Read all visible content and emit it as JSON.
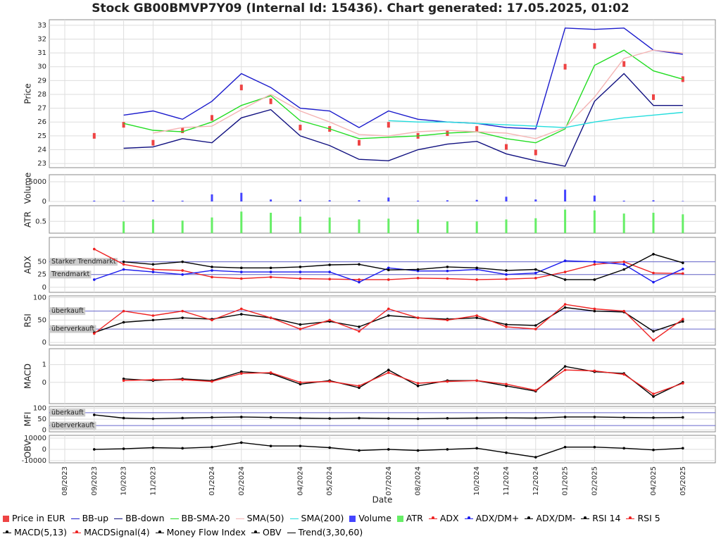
{
  "chart_data": {
    "type": "stock",
    "title": "Stock GB00BMVP7Y09 (Internal Id: 15436). Chart generated: 17.05.2025, 01:02",
    "x_label": "Date",
    "categories": [
      "08/2023",
      "09/2023",
      "10/2023",
      "11/2023",
      null,
      "01/2024",
      "02/2024",
      null,
      "04/2024",
      "05/2024",
      null,
      "07/2024",
      "08/2024",
      null,
      "10/2024",
      "11/2024",
      "12/2024",
      "01/2025",
      "02/2025",
      null,
      "04/2025",
      "05/2025"
    ],
    "grid": true,
    "panels": [
      {
        "y_label": "Price",
        "ylim": [
          22.7,
          33.4
        ],
        "yticks": [
          23,
          24,
          25,
          26,
          27,
          28,
          29,
          30,
          31,
          32,
          33
        ],
        "series": [
          {
            "name": "Price in EUR",
            "type": "price",
            "color": "#ee4444",
            "values": [
              null,
              25.0,
              25.8,
              24.5,
              25.4,
              26.3,
              28.5,
              27.5,
              25.6,
              25.5,
              24.5,
              25.8,
              25.0,
              25.2,
              25.5,
              24.2,
              23.8,
              30.0,
              31.5,
              30.2,
              27.8,
              29.1
            ]
          },
          {
            "name": "BB-up",
            "type": "line",
            "color": "#1a1acc",
            "values": [
              null,
              null,
              26.5,
              26.8,
              26.2,
              27.5,
              29.5,
              28.5,
              27.0,
              26.8,
              25.6,
              26.8,
              26.2,
              26.0,
              25.9,
              25.6,
              25.5,
              32.8,
              32.7,
              32.8,
              31.2,
              30.9
            ]
          },
          {
            "name": "BB-down",
            "type": "line",
            "color": "#101080",
            "values": [
              null,
              null,
              24.1,
              24.2,
              24.8,
              24.5,
              26.3,
              26.9,
              25.0,
              24.3,
              23.3,
              23.2,
              24.0,
              24.4,
              24.6,
              23.7,
              23.2,
              22.8,
              27.5,
              29.5,
              27.2,
              27.2
            ]
          },
          {
            "name": "BB-SMA-20",
            "type": "line",
            "color": "#22dd22",
            "values": [
              null,
              null,
              25.9,
              25.4,
              25.3,
              26.0,
              27.2,
              27.9,
              26.1,
              25.5,
              24.8,
              24.9,
              25.0,
              25.2,
              25.3,
              24.8,
              24.5,
              25.5,
              30.1,
              31.2,
              29.7,
              29.1
            ]
          },
          {
            "name": "SMA(50)",
            "type": "line",
            "color": "#f4b4b4",
            "values": [
              null,
              null,
              null,
              25.2,
              25.6,
              25.7,
              26.9,
              28.0,
              26.8,
              26.0,
              25.1,
              25.0,
              25.3,
              25.4,
              25.3,
              25.2,
              24.8,
              25.6,
              27.8,
              30.6,
              31.2,
              31.0
            ]
          },
          {
            "name": "SMA(200)",
            "type": "line",
            "color": "#22dddd",
            "values": [
              null,
              null,
              null,
              null,
              null,
              null,
              null,
              null,
              null,
              null,
              null,
              26.1,
              26.0,
              26.0,
              25.9,
              25.8,
              25.7,
              25.6,
              26.0,
              26.3,
              26.5,
              26.7
            ]
          }
        ]
      },
      {
        "y_label": "Volume",
        "ylim": [
          0,
          6800
        ],
        "yticks": [
          0,
          5000
        ],
        "series": [
          {
            "name": "Volume",
            "type": "bar",
            "color": "#4444ff",
            "values": [
              null,
              200,
              100,
              300,
              200,
              1800,
              2200,
              500,
              400,
              300,
              300,
              1000,
              200,
              300,
              400,
              1200,
              500,
              3000,
              1500,
              200,
              300,
              100
            ]
          }
        ]
      },
      {
        "y_label": "ATR",
        "ylim": [
          0.2,
          0.9
        ],
        "yticks": [
          0.5
        ],
        "series": [
          {
            "name": "ATR",
            "type": "bar",
            "color": "#66ee66",
            "values": [
              null,
              null,
              0.5,
              0.55,
              0.52,
              0.6,
              0.75,
              0.72,
              0.62,
              0.6,
              0.55,
              0.57,
              0.55,
              0.5,
              0.5,
              0.55,
              0.58,
              0.8,
              0.78,
              0.7,
              0.72,
              0.68
            ]
          }
        ]
      },
      {
        "y_label": "ADX",
        "ylim": [
          -10,
          98
        ],
        "yticks": [
          0,
          25,
          50
        ],
        "levels": [
          {
            "value": 50,
            "label": "Starker Trendmarkt"
          },
          {
            "value": 25,
            "label": "Trendmarkt"
          }
        ],
        "series": [
          {
            "name": "ADX",
            "type": "dotline",
            "color": "#ee2222",
            "values": [
              null,
              75,
              45,
              35,
              33,
              20,
              17,
              20,
              17,
              16,
              15,
              15,
              18,
              17,
              15,
              16,
              18,
              30,
              45,
              50,
              28,
              27
            ]
          },
          {
            "name": "ADX/DM+",
            "type": "dotline",
            "color": "#1a1aee",
            "values": [
              null,
              15,
              35,
              30,
              25,
              33,
              30,
              30,
              30,
              30,
              10,
              38,
              32,
              32,
              35,
              25,
              28,
              52,
              50,
              45,
              10,
              36
            ]
          },
          {
            "name": "ADX/DM-",
            "type": "dotline",
            "color": "#000000",
            "values": [
              null,
              null,
              50,
              45,
              50,
              40,
              38,
              38,
              40,
              44,
              45,
              34,
              35,
              40,
              38,
              33,
              35,
              15,
              15,
              35,
              65,
              48
            ]
          }
        ]
      },
      {
        "y_label": "RSI",
        "ylim": [
          -6,
          104
        ],
        "yticks": [
          0,
          50,
          100
        ],
        "levels": [
          {
            "value": 70,
            "label": "überkauft"
          },
          {
            "value": 30,
            "label": "überverkauft"
          }
        ],
        "series": [
          {
            "name": "RSI 14",
            "type": "dotline",
            "color": "#000000",
            "values": [
              null,
              22,
              45,
              50,
              55,
              52,
              63,
              55,
              40,
              47,
              35,
              60,
              55,
              52,
              55,
              40,
              38,
              78,
              70,
              68,
              25,
              47
            ]
          },
          {
            "name": "RSI 5",
            "type": "dotline",
            "color": "#ee2222",
            "values": [
              null,
              20,
              70,
              60,
              70,
              50,
              75,
              55,
              30,
              50,
              25,
              75,
              55,
              50,
              60,
              35,
              30,
              85,
              75,
              70,
              5,
              52
            ]
          }
        ]
      },
      {
        "y_label": "MACD",
        "ylim": [
          -1.2,
          1.9
        ],
        "yticks": [
          0,
          1
        ],
        "series": [
          {
            "name": "MACD(5,13)",
            "type": "dotline",
            "color": "#000000",
            "values": [
              null,
              null,
              0.2,
              0.1,
              0.2,
              0.1,
              0.6,
              0.5,
              -0.1,
              0.1,
              -0.3,
              0.7,
              -0.2,
              0.1,
              0.1,
              -0.2,
              -0.5,
              0.9,
              0.6,
              0.5,
              -0.8,
              0.0
            ]
          },
          {
            "name": "MACDSignal(4)",
            "type": "dotline",
            "color": "#ee2222",
            "values": [
              null,
              null,
              0.1,
              0.15,
              0.15,
              0.05,
              0.5,
              0.55,
              0.0,
              0.05,
              -0.2,
              0.55,
              -0.05,
              0.05,
              0.1,
              -0.1,
              -0.45,
              0.7,
              0.65,
              0.45,
              -0.65,
              -0.05
            ]
          }
        ]
      },
      {
        "y_label": "MFI",
        "ylim": [
          -9,
          109
        ],
        "yticks": [
          0,
          50,
          100
        ],
        "levels": [
          {
            "value": 80,
            "label": "überkauft"
          },
          {
            "value": 20,
            "label": "überverkauft"
          }
        ],
        "series": [
          {
            "name": "Money Flow Index",
            "type": "dotline",
            "color": "#000000",
            "values": [
              null,
              70,
              55,
              52,
              55,
              58,
              60,
              58,
              55,
              53,
              55,
              53,
              52,
              54,
              55,
              56,
              55,
              60,
              60,
              58,
              57,
              58
            ]
          }
        ]
      },
      {
        "y_label": "OBV",
        "ylim": [
          -12000,
          12500
        ],
        "yticks": [
          -10000,
          0,
          10000
        ],
        "series": [
          {
            "name": "OBV",
            "type": "dotline",
            "color": "#000000",
            "values": [
              null,
              0,
              500,
              1500,
              1000,
              2000,
              6000,
              3000,
              3000,
              1500,
              -1000,
              0,
              -1000,
              0,
              1000,
              -3000,
              -7000,
              2000,
              2000,
              1000,
              -500,
              1000
            ]
          },
          {
            "name": "Trend(3,30,60)",
            "type": "line",
            "color": "#000000"
          }
        ]
      }
    ]
  }
}
